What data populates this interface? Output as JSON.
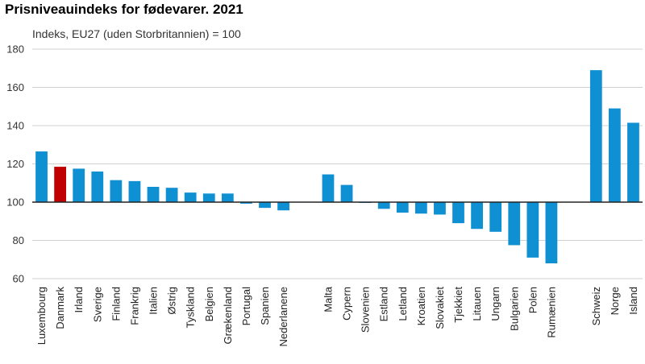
{
  "chart_data": {
    "type": "bar",
    "title": "Prisniveauindeks for fødevarer. 2021",
    "subtitle": "Indeks, EU27 (uden Storbritannien) = 100",
    "xlabel": "",
    "ylabel": "",
    "ylim": [
      60,
      180
    ],
    "yticks": [
      60,
      80,
      100,
      120,
      140,
      160,
      180
    ],
    "baseline": 100,
    "grid": true,
    "legend": "none",
    "colors": {
      "default": "#0e90d2",
      "highlight": "#c00000",
      "grid": "#d0d0d0",
      "baseline": "#222222"
    },
    "highlight": [
      "Danmark"
    ],
    "groups": [
      {
        "categories": [
          "Luxembourg",
          "Danmark",
          "Irland",
          "Sverige",
          "Finland",
          "Frankrig",
          "Italien",
          "Østrig",
          "Tyskland",
          "Belgien",
          "Grækenland",
          "Portugal",
          "Spanien",
          "Nederlanene"
        ],
        "values": [
          126.5,
          118.5,
          117.5,
          116,
          111.5,
          111,
          108,
          107.5,
          105,
          104.5,
          104.5,
          99.2,
          97,
          95.7
        ]
      },
      {
        "categories": [
          "Malta",
          "Cypern",
          "Slovenien",
          "Estland",
          "Letland",
          "Kroatien",
          "Slovakiet",
          "Tjekkiet",
          "Litauen",
          "Ungarn",
          "Bulgarien",
          "Polen",
          "Rumænien"
        ],
        "values": [
          114.5,
          109,
          100,
          96.5,
          94.5,
          94,
          93.5,
          89,
          86,
          84.5,
          77.5,
          71,
          68
        ]
      },
      {
        "categories": [
          "Schweiz",
          "Norge",
          "Island"
        ],
        "values": [
          169,
          149,
          141.5
        ]
      }
    ]
  }
}
